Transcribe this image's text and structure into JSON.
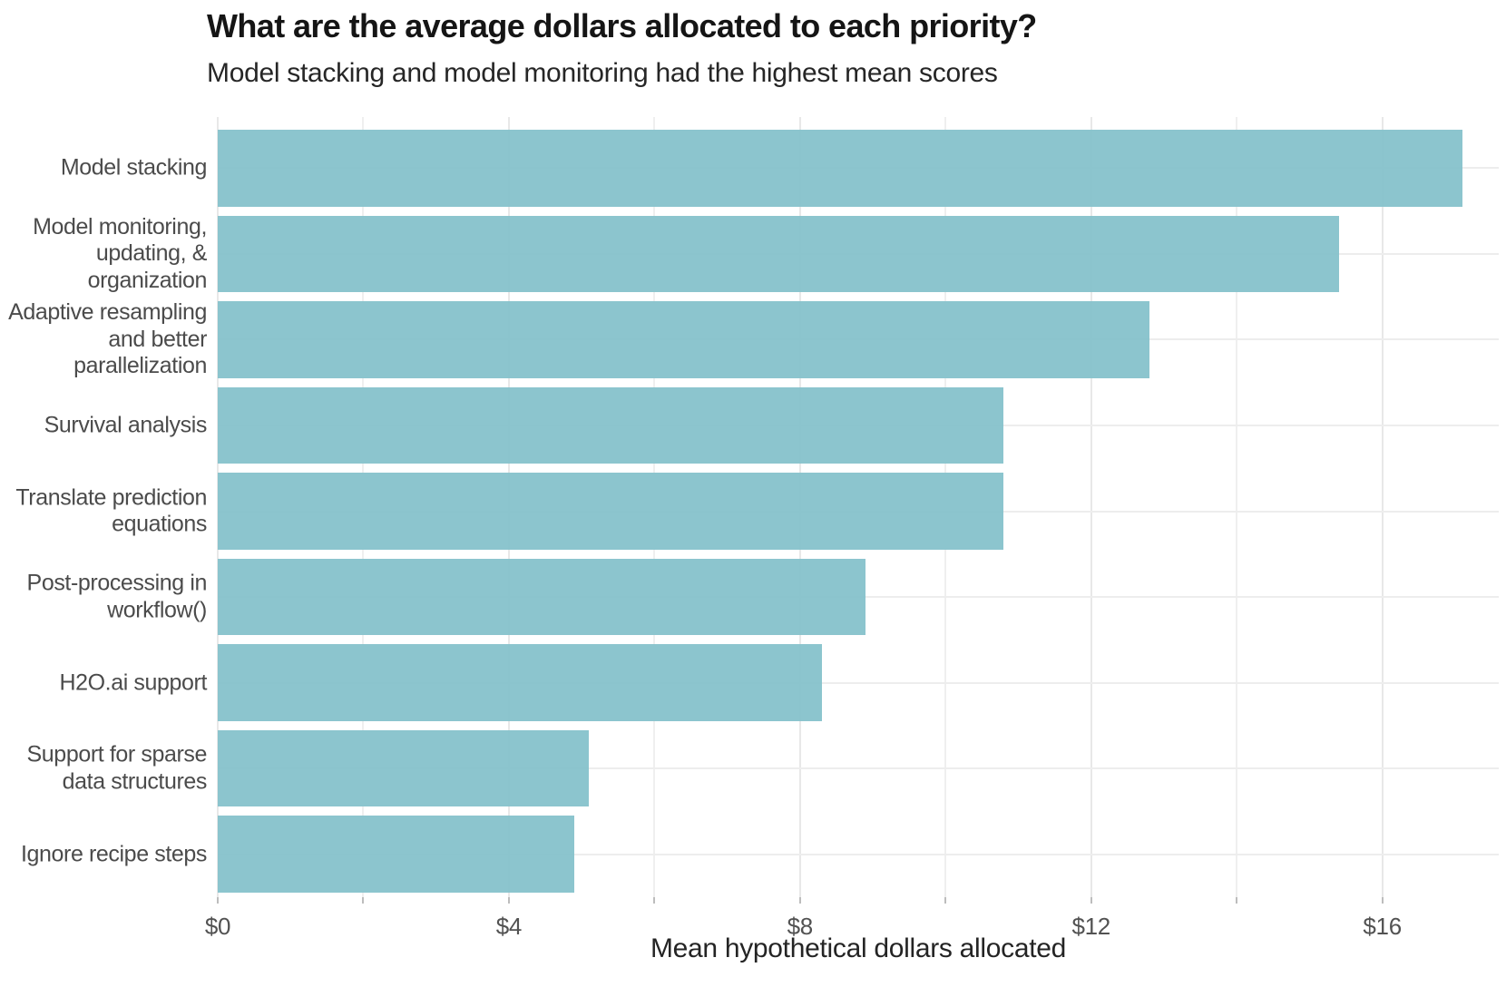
{
  "chart_data": {
    "type": "bar",
    "orientation": "horizontal",
    "title": "What are the average dollars allocated to each priority?",
    "subtitle": "Model stacking and model monitoring had the highest mean scores",
    "xlabel": "Mean hypothetical dollars allocated",
    "ylabel": "",
    "categories": [
      "Model stacking",
      "Model monitoring,\nupdating, &\norganization",
      "Adaptive resampling\nand better\nparallelization",
      "Survival analysis",
      "Translate prediction\nequations",
      "Post-processing in\nworkflow()",
      "H2O.ai support",
      "Support for sparse\ndata structures",
      "Ignore recipe steps"
    ],
    "values": [
      17.1,
      15.4,
      12.8,
      10.8,
      10.8,
      8.9,
      8.3,
      5.1,
      4.9
    ],
    "xlim": [
      0,
      17.6
    ],
    "x_ticks": {
      "major": [
        0,
        4,
        8,
        12,
        16
      ],
      "labels": [
        "$0",
        "$4",
        "$8",
        "$12",
        "$16"
      ],
      "minor_step": 2
    },
    "grid": "on",
    "legend": "none",
    "colors": {
      "bar": "#86c2cb",
      "grid_major": "#e8e8e8",
      "grid_minor": "#efefef",
      "tick_mark": "#bdbdbd",
      "title_text": "#151515",
      "subtitle_text": "#262626",
      "axis_label_text": "#4b4b4b",
      "tick_label_text": "#525252",
      "background": "#ffffff"
    }
  }
}
